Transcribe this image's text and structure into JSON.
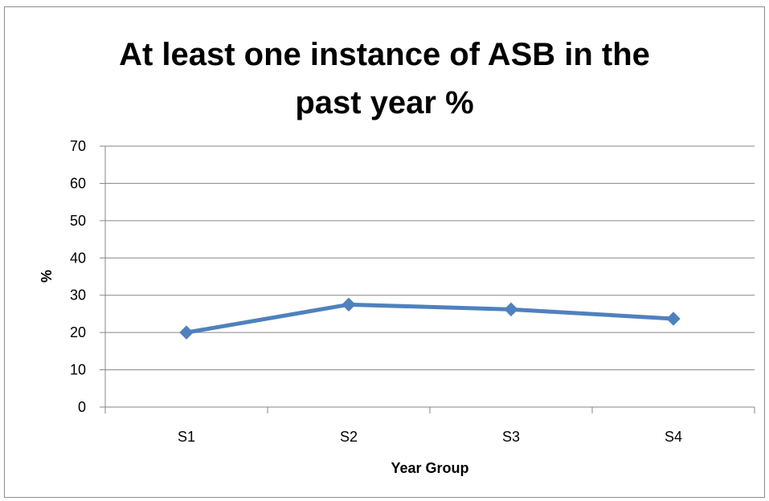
{
  "chart_data": {
    "type": "line",
    "title": "At least one instance of ASB in the past year %",
    "title_lines": [
      "At least one instance of ASB in the",
      "past year %"
    ],
    "xlabel": "Year Group",
    "ylabel": "%",
    "categories": [
      "S1",
      "S2",
      "S3",
      "S4"
    ],
    "series": [
      {
        "values": [
          20,
          27.5,
          26.2,
          23.7
        ],
        "color": "#4f81bd",
        "marker": "diamond"
      }
    ],
    "ylim": [
      0,
      70
    ],
    "yticks": [
      0,
      10,
      20,
      30,
      40,
      50,
      60,
      70
    ],
    "grid": true,
    "legend": "none"
  }
}
